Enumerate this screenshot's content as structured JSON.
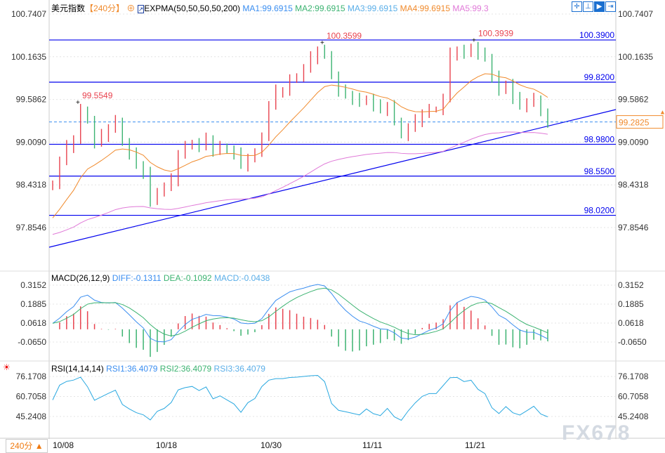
{
  "header": {
    "symbol": "美元指数",
    "period": "【240分】",
    "indicator": "EXPMA(50,50,50,50,200)",
    "ma1": "MA1:99.6915",
    "ma2": "MA2:99.6915",
    "ma3": "MA3:99.6915",
    "ma4": "MA4:99.6915",
    "ma5": "MA5:99.3"
  },
  "toolbar": {
    "icons": [
      "crosshair-icon",
      "range-icon",
      "play-icon",
      "exit-icon"
    ]
  },
  "price_axis": [
    "100.7407",
    "100.1635",
    "99.5862",
    "99.0090",
    "98.4318",
    "97.8546"
  ],
  "price_range": [
    97.8546,
    100.7407
  ],
  "current_price": "99.2825",
  "levels": [
    {
      "value": 100.39,
      "label": "100.3900"
    },
    {
      "value": 99.82,
      "label": "99.8200"
    },
    {
      "value": 98.98,
      "label": "98.9800"
    },
    {
      "value": 98.55,
      "label": "98.5500"
    },
    {
      "value": 98.02,
      "label": "98.0200"
    }
  ],
  "annotations": {
    "high1": "99.5549",
    "high2": "100.3599",
    "high3": "100.3939"
  },
  "closes": [
    98.45,
    98.75,
    98.95,
    99.05,
    99.45,
    99.3,
    99.0,
    99.1,
    99.2,
    99.3,
    99.0,
    98.85,
    98.7,
    98.6,
    98.2,
    98.35,
    98.4,
    98.5,
    98.85,
    98.95,
    99.0,
    98.95,
    99.05,
    98.9,
    98.95,
    98.9,
    98.85,
    98.7,
    98.8,
    98.85,
    99.1,
    99.5,
    99.7,
    99.7,
    99.85,
    99.9,
    100.0,
    100.15,
    100.25,
    100.2,
    99.9,
    99.7,
    99.65,
    99.6,
    99.55,
    99.6,
    99.5,
    99.45,
    99.5,
    99.3,
    99.1,
    99.2,
    99.3,
    99.4,
    99.45,
    99.45,
    99.6,
    100.2,
    100.25,
    100.2,
    100.3,
    100.2,
    100.15,
    99.9,
    99.7,
    99.8,
    99.6,
    99.5,
    99.55,
    99.6,
    99.4,
    99.28
  ],
  "colors": {
    "up": "#e8434f",
    "down": "#3cb371",
    "ema_fast": "#f08a2c",
    "ema_slow": "#e07ad8",
    "level": "#0000ee",
    "diff": "#3b8ef0",
    "dea": "#3cb371"
  },
  "macd": {
    "title": "MACD(26,12,9)",
    "diff": "DIFF:-0.1311",
    "dea": "DEA:-0.1092",
    "macd": "MACD:-0.0438",
    "axis": [
      "0.3152",
      "0.1885",
      "0.0618",
      "-0.0650"
    ]
  },
  "rsi": {
    "title": "RSI(14,14,14)",
    "rsi1": "RSI1:36.4079",
    "rsi2": "RSI2:36.4079",
    "rsi3": "RSI3:36.4079",
    "axis": [
      "76.1708",
      "60.7058",
      "45.2408"
    ]
  },
  "x_axis": [
    "10/08",
    "10/18",
    "10/30",
    "11/11",
    "11/21"
  ],
  "period_button": "240分 ▲",
  "watermark": "FX678"
}
